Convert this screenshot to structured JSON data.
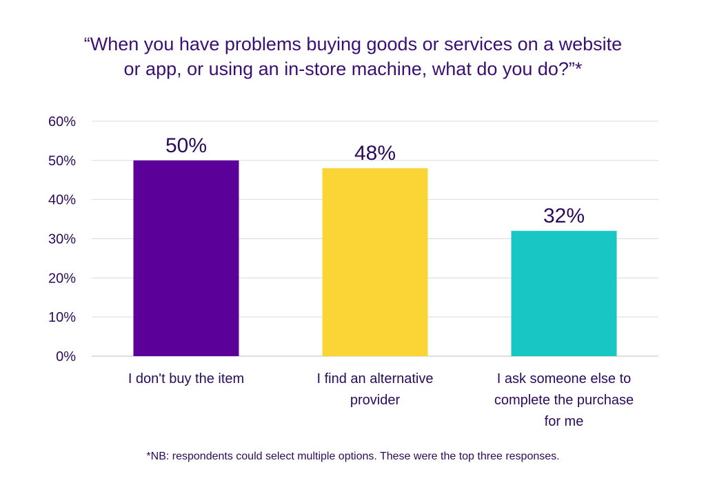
{
  "chart_data": {
    "type": "bar",
    "title_lines": [
      "“When you have problems buying goods or services on a website",
      "or app, or using an in-store machine, what do you do?”*"
    ],
    "categories": [
      [
        "I don't buy the item"
      ],
      [
        "I find an alternative",
        "provider"
      ],
      [
        "I ask someone else to",
        "complete the purchase",
        "for me"
      ]
    ],
    "values": [
      50,
      48,
      32
    ],
    "value_labels": [
      "50%",
      "48%",
      "32%"
    ],
    "colors": [
      "#5b0099",
      "#fbd436",
      "#18c7c4"
    ],
    "ylim": [
      0,
      60
    ],
    "yticks": [
      0,
      10,
      20,
      30,
      40,
      50,
      60
    ],
    "ytick_labels": [
      "0%",
      "10%",
      "20%",
      "30%",
      "40%",
      "50%",
      "60%"
    ],
    "xlabel": "",
    "ylabel": "",
    "grid": true,
    "gridline_color": "#d9d9d9"
  },
  "footnote": "*NB: respondents could select multiple options. These were the top three responses."
}
